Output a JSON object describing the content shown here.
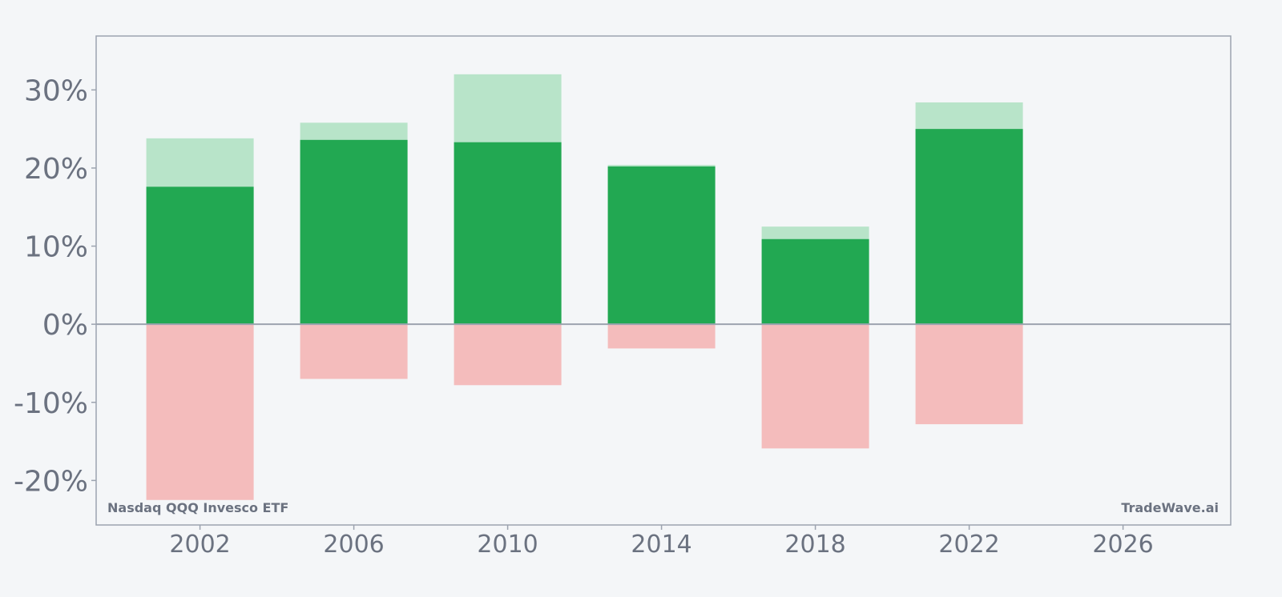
{
  "chart_data": {
    "type": "bar",
    "x": [
      2002,
      2006,
      2010,
      2014,
      2018,
      2022
    ],
    "series": [
      {
        "values": [
          17.6,
          23.6,
          23.3,
          20.2,
          10.9,
          25.0
        ]
      },
      {
        "values": [
          23.8,
          25.8,
          32.0,
          20.4,
          12.5,
          28.4
        ]
      },
      {
        "values": [
          -22.5,
          -7.0,
          -7.8,
          -3.1,
          -15.9,
          -12.8
        ]
      }
    ],
    "x_ticks": [
      2002,
      2006,
      2010,
      2014,
      2018,
      2022,
      2026
    ],
    "x_tick_labels": [
      "2002",
      "2006",
      "2010",
      "2014",
      "2018",
      "2022",
      "2026"
    ],
    "y_ticks": [
      -20,
      -10,
      0,
      10,
      20,
      30
    ],
    "y_tick_labels": [
      "-20%",
      "-10%",
      "0%",
      "10%",
      "20%",
      "30%"
    ],
    "xlim": [
      1999.3,
      2028.8
    ],
    "ylim": [
      -25.7,
      36.9
    ],
    "grid": false,
    "title": "",
    "xlabel": "",
    "ylabel": "",
    "colors": {
      "dark_green": "#22a852",
      "light_green": "#b8e4c9",
      "light_red": "#f4bcbc",
      "axis": "#9ca3af",
      "text": "#6b7280"
    }
  },
  "watermarks": {
    "left": "Nasdaq QQQ Invesco ETF",
    "right": "TradeWave.ai"
  }
}
